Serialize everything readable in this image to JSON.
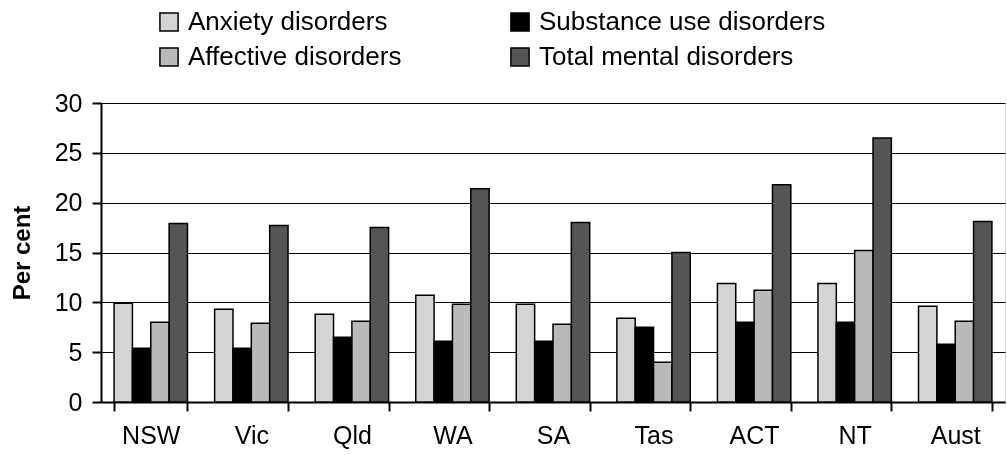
{
  "chart_data": {
    "type": "bar",
    "categories": [
      "NSW",
      "Vic",
      "Qld",
      "WA",
      "SA",
      "Tas",
      "ACT",
      "NT",
      "Aust"
    ],
    "series": [
      {
        "name": "Anxiety disorders",
        "color": "#d4d4d4",
        "values": [
          9.9,
          9.3,
          8.8,
          10.7,
          9.8,
          8.4,
          11.9,
          11.9,
          9.6
        ]
      },
      {
        "name": "Substance use disorders",
        "color": "#000000",
        "values": [
          5.4,
          5.4,
          6.5,
          6.1,
          6.1,
          7.5,
          8.0,
          8.0,
          5.8
        ]
      },
      {
        "name": "Affective disorders",
        "color": "#bababa",
        "values": [
          8.0,
          7.9,
          8.1,
          9.8,
          7.8,
          4.0,
          11.2,
          15.2,
          8.1
        ]
      },
      {
        "name": "Total mental disorders",
        "color": "#555555",
        "values": [
          17.9,
          17.7,
          17.5,
          21.4,
          18.0,
          15.0,
          21.8,
          26.5,
          18.1
        ]
      }
    ],
    "ylabel": "Per cent",
    "ylim": [
      0,
      30
    ],
    "yticks": [
      0,
      5,
      10,
      15,
      20,
      25,
      30
    ],
    "grid": "y",
    "legend": "top"
  }
}
